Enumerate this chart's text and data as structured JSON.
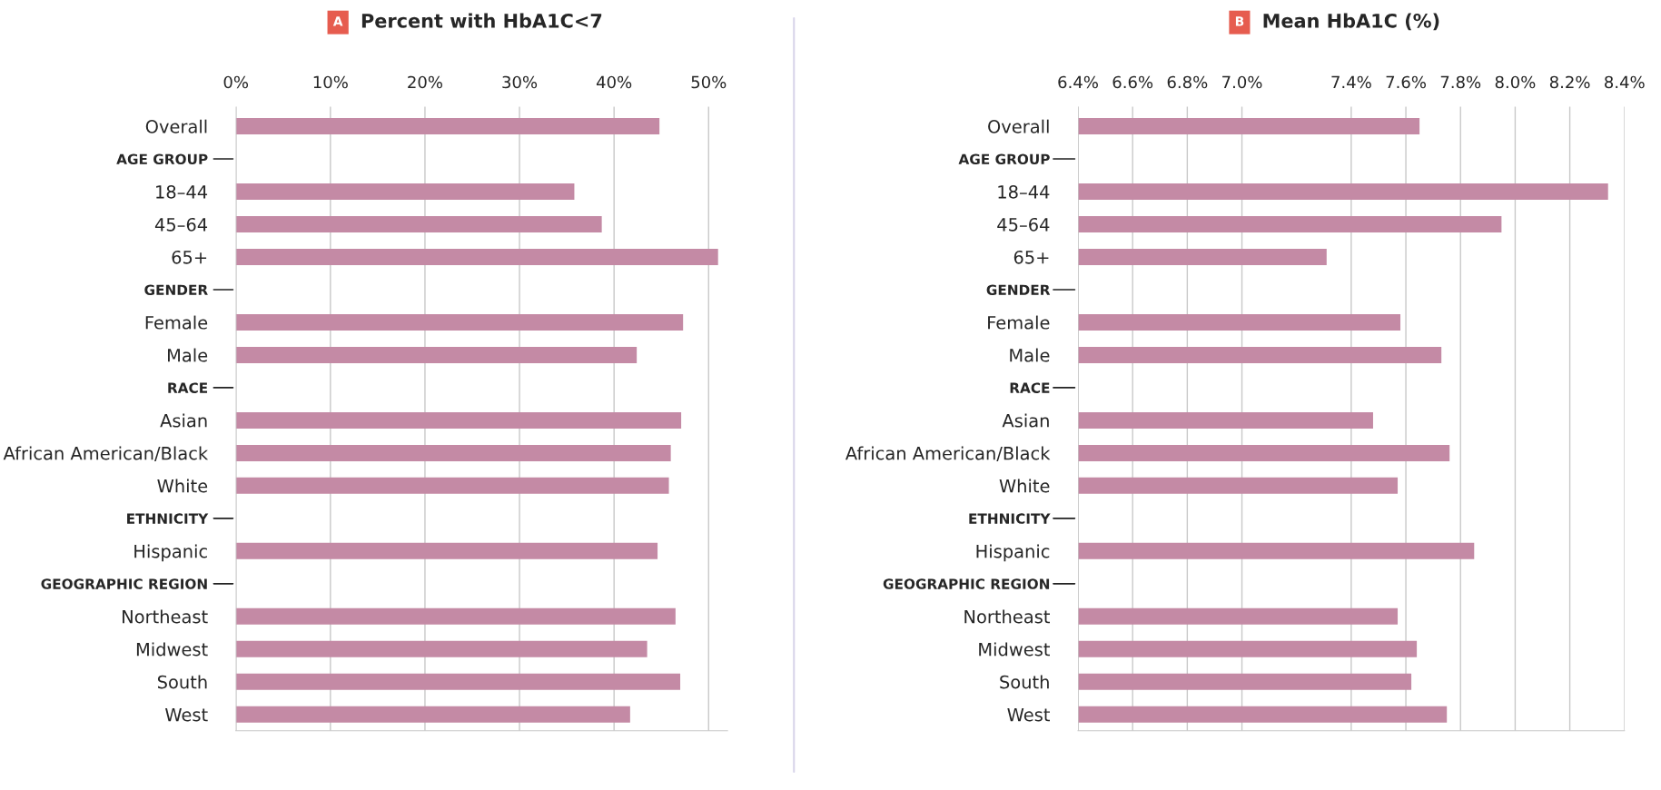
{
  "chart_data": [
    {
      "type": "bar",
      "orientation": "horizontal",
      "title": "Percent with HbA1C<7",
      "annotations": [
        "A"
      ],
      "categories": [
        "Overall",
        "AGE GROUP",
        "18–44",
        "45–64",
        "65+",
        "GENDER",
        "Female",
        "Male",
        "RACE",
        "Asian",
        "African American/Black",
        "White",
        "ETHNICITY",
        "Hispanic",
        "GEOGRAPHIC REGION",
        "Northeast",
        "Midwest",
        "South",
        "West"
      ],
      "values": [
        44.8,
        null,
        35.8,
        38.7,
        51.0,
        null,
        47.3,
        42.4,
        null,
        47.1,
        46.0,
        45.8,
        null,
        44.6,
        null,
        46.5,
        43.5,
        47.0,
        41.7
      ],
      "color": "#c48aa5",
      "xlim": [
        0,
        52
      ],
      "xticks": [
        {
          "value": 0,
          "label": "0%"
        },
        {
          "value": 10,
          "label": "10%"
        },
        {
          "value": 20,
          "label": "20%"
        },
        {
          "value": 30,
          "label": "30%"
        },
        {
          "value": 40,
          "label": "40%"
        },
        {
          "value": 50,
          "label": "50%"
        }
      ],
      "grid": "x",
      "legend": false
    },
    {
      "type": "bar",
      "orientation": "horizontal",
      "title": "Mean HbA1C (%)",
      "annotations": [
        "B"
      ],
      "categories": [
        "Overall",
        "AGE GROUP",
        "18–44",
        "45–64",
        "65+",
        "GENDER",
        "Female",
        "Male",
        "RACE",
        "Asian",
        "African American/Black",
        "White",
        "ETHNICITY",
        "Hispanic",
        "GEOGRAPHIC REGION",
        "Northeast",
        "Midwest",
        "South",
        "West"
      ],
      "values": [
        7.65,
        null,
        8.34,
        7.95,
        7.31,
        null,
        7.58,
        7.73,
        null,
        7.48,
        7.76,
        7.57,
        null,
        7.85,
        null,
        7.57,
        7.64,
        7.62,
        7.75
      ],
      "color": "#c48aa5",
      "xlim": [
        6.4,
        8.4
      ],
      "xticks": [
        {
          "value": 6.4,
          "label": "6.4%"
        },
        {
          "value": 6.6,
          "label": "6.6%"
        },
        {
          "value": 6.8,
          "label": "6.8%"
        },
        {
          "value": 7.0,
          "label": "7.0%"
        },
        {
          "value": 7.4,
          "label": "7.4%"
        },
        {
          "value": 7.6,
          "label": "7.6%"
        },
        {
          "value": 7.8,
          "label": "7.8%"
        },
        {
          "value": 8.0,
          "label": "8.0%"
        },
        {
          "value": 8.2,
          "label": "8.2%"
        },
        {
          "value": 8.4,
          "label": "8.4%"
        }
      ],
      "grid": "x",
      "legend": false
    }
  ]
}
